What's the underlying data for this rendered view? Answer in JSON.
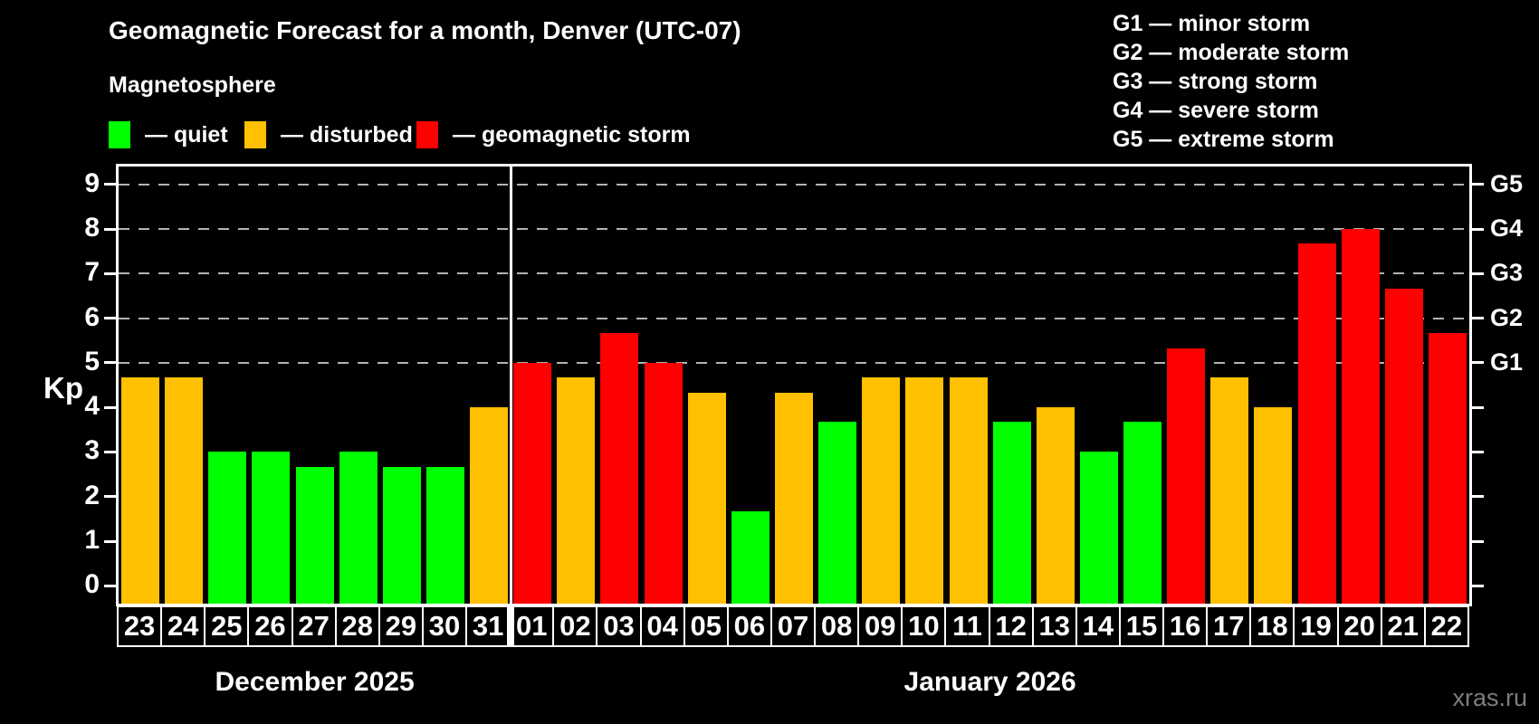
{
  "header": {
    "title": "Geomagnetic Forecast for a month, Denver (UTC-07)",
    "subtitle": "Magnetosphere"
  },
  "legend": {
    "items": [
      {
        "state": "quiet",
        "label": "— quiet"
      },
      {
        "state": "disturbed",
        "label": "— disturbed"
      },
      {
        "state": "storm",
        "label": "— geomagnetic storm"
      }
    ]
  },
  "g_scale_legend": [
    "G1 — minor storm",
    "G2 — moderate storm",
    "G3 — strong storm",
    "G4 — severe storm",
    "G5 — extreme storm"
  ],
  "watermark": "xras.ru",
  "colors": {
    "quiet": "#00ff00",
    "disturbed": "#ffc000",
    "storm": "#ff0000",
    "grid": "#b3b3b3",
    "axis": "#ffffff",
    "background": "#000000",
    "watermark_text": "#7d7d7d"
  },
  "chart_data": {
    "type": "bar",
    "title": "Geomagnetic Forecast for a month, Denver (UTC-07)",
    "xlabel": "",
    "ylabel": "Kp",
    "ylim": [
      0,
      9
    ],
    "y_ticks": [
      0,
      1,
      2,
      3,
      4,
      5,
      6,
      7,
      8,
      9
    ],
    "gridlines_at": [
      5,
      6,
      7,
      8,
      9
    ],
    "grid": "dashed horizontal at storm levels only",
    "right_axis_labels": [
      {
        "text": "G5",
        "kp": 9
      },
      {
        "text": "G4",
        "kp": 8
      },
      {
        "text": "G3",
        "kp": 7
      },
      {
        "text": "G2",
        "kp": 6
      },
      {
        "text": "G1",
        "kp": 5
      }
    ],
    "months": [
      {
        "label": "December 2025",
        "start_index": 0,
        "count": 9
      },
      {
        "label": "January 2026",
        "start_index": 9,
        "count": 22
      }
    ],
    "bars": [
      {
        "day": "23",
        "kp": 4.67,
        "state": "disturbed"
      },
      {
        "day": "24",
        "kp": 4.67,
        "state": "disturbed"
      },
      {
        "day": "25",
        "kp": 3.0,
        "state": "quiet"
      },
      {
        "day": "26",
        "kp": 3.0,
        "state": "quiet"
      },
      {
        "day": "27",
        "kp": 2.67,
        "state": "quiet"
      },
      {
        "day": "28",
        "kp": 3.0,
        "state": "quiet"
      },
      {
        "day": "29",
        "kp": 2.67,
        "state": "quiet"
      },
      {
        "day": "30",
        "kp": 2.67,
        "state": "quiet"
      },
      {
        "day": "31",
        "kp": 4.0,
        "state": "disturbed"
      },
      {
        "day": "01",
        "kp": 5.0,
        "state": "storm"
      },
      {
        "day": "02",
        "kp": 4.67,
        "state": "disturbed"
      },
      {
        "day": "03",
        "kp": 5.67,
        "state": "storm"
      },
      {
        "day": "04",
        "kp": 5.0,
        "state": "storm"
      },
      {
        "day": "05",
        "kp": 4.33,
        "state": "disturbed"
      },
      {
        "day": "06",
        "kp": 1.67,
        "state": "quiet"
      },
      {
        "day": "07",
        "kp": 4.33,
        "state": "disturbed"
      },
      {
        "day": "08",
        "kp": 3.67,
        "state": "quiet"
      },
      {
        "day": "09",
        "kp": 4.67,
        "state": "disturbed"
      },
      {
        "day": "10",
        "kp": 4.67,
        "state": "disturbed"
      },
      {
        "day": "11",
        "kp": 4.67,
        "state": "disturbed"
      },
      {
        "day": "12",
        "kp": 3.67,
        "state": "quiet"
      },
      {
        "day": "13",
        "kp": 4.0,
        "state": "disturbed"
      },
      {
        "day": "14",
        "kp": 3.0,
        "state": "quiet"
      },
      {
        "day": "15",
        "kp": 3.67,
        "state": "quiet"
      },
      {
        "day": "16",
        "kp": 5.33,
        "state": "storm"
      },
      {
        "day": "17",
        "kp": 4.67,
        "state": "disturbed"
      },
      {
        "day": "18",
        "kp": 4.0,
        "state": "disturbed"
      },
      {
        "day": "19",
        "kp": 7.67,
        "state": "storm"
      },
      {
        "day": "20",
        "kp": 8.0,
        "state": "storm"
      },
      {
        "day": "21",
        "kp": 6.67,
        "state": "storm"
      },
      {
        "day": "22",
        "kp": 5.67,
        "state": "storm"
      }
    ]
  }
}
